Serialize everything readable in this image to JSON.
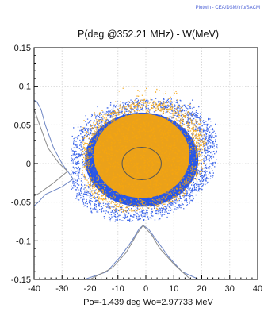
{
  "credit": "Plotwin - CEA/DSM/Irfu/SACM",
  "chart_data": {
    "type": "scatter",
    "title": "P(deg @352.21 MHz) - W(MeV)",
    "xlabel": "Po=-1.439 deg  Wo=2.97733 MeV",
    "ylabel": "",
    "xlim": [
      -40,
      40
    ],
    "ylim": [
      -0.15,
      0.15
    ],
    "x_ticks": [
      -40,
      -30,
      -20,
      -10,
      0,
      10,
      20,
      30,
      40
    ],
    "x_tick_labels": [
      "-40",
      "-30",
      "-20",
      "-10",
      "0",
      "10",
      "20",
      "30",
      "40"
    ],
    "y_ticks": [
      0.15,
      0.1,
      0.05,
      0,
      -0.05,
      -0.1,
      -0.15
    ],
    "y_tick_labels": [
      "0.15",
      "0.1",
      "0.05",
      "0",
      "-0.05",
      "-0.1",
      "-0.15"
    ],
    "grid": true,
    "series": [
      {
        "color": "#1f4fe6",
        "kind": "particles",
        "shape": "tilted ellipse with outer halo",
        "center": [
          -1.5,
          0.005
        ],
        "half_width_deg": 26,
        "half_height_MeV": 0.078,
        "tilt_slope": 0.0011,
        "x_range": [
          -27,
          33
        ],
        "y_range": [
          -0.075,
          0.085
        ]
      },
      {
        "color": "#f5a50e",
        "kind": "particles",
        "shape": "tilted ellipse with upper halo",
        "center": [
          -1.5,
          0.01
        ],
        "half_width_deg": 22,
        "half_height_MeV": 0.07,
        "tilt_slope": 0.001,
        "x_range": [
          -23,
          28
        ],
        "y_range": [
          -0.062,
          0.112
        ]
      },
      {
        "color": "#555555",
        "kind": "reference-ellipse",
        "center": [
          -1.5,
          0.0
        ],
        "rx_deg": 7,
        "ry_MeV": 0.021
      },
      {
        "color": "#6e86c4",
        "kind": "phase-profile",
        "anchor": "bottom",
        "points": [
          [
            -22,
            -0.15
          ],
          [
            -14,
            -0.14
          ],
          [
            -9,
            -0.12
          ],
          [
            -5,
            -0.1
          ],
          [
            -2.5,
            -0.085
          ],
          [
            -1,
            -0.08
          ],
          [
            1,
            -0.085
          ],
          [
            4,
            -0.1
          ],
          [
            8,
            -0.12
          ],
          [
            13,
            -0.14
          ],
          [
            19,
            -0.15
          ]
        ]
      },
      {
        "color": "#8a8a8a",
        "kind": "phase-profile",
        "anchor": "bottom",
        "points": [
          [
            -20,
            -0.15
          ],
          [
            -12,
            -0.135
          ],
          [
            -7,
            -0.115
          ],
          [
            -3,
            -0.09
          ],
          [
            -1,
            -0.08
          ],
          [
            2,
            -0.092
          ],
          [
            5,
            -0.11
          ],
          [
            10,
            -0.13
          ],
          [
            16,
            -0.15
          ]
        ]
      },
      {
        "color": "#6e86c4",
        "kind": "energy-profile",
        "anchor": "left",
        "points": [
          [
            -40,
            0.082
          ],
          [
            -39,
            0.08
          ],
          [
            -37.5,
            0.07
          ],
          [
            -36,
            0.05
          ],
          [
            -33,
            0.02
          ],
          [
            -30,
            0.0
          ],
          [
            -26,
            -0.02
          ],
          [
            -30,
            -0.03
          ],
          [
            -36,
            -0.04
          ],
          [
            -38.5,
            -0.05
          ],
          [
            -40,
            -0.055
          ]
        ]
      },
      {
        "color": "#8a8a8a",
        "kind": "energy-profile",
        "anchor": "left",
        "points": [
          [
            -40,
            0.07
          ],
          [
            -38,
            0.05
          ],
          [
            -35,
            0.02
          ],
          [
            -31,
            0.0
          ],
          [
            -28,
            -0.01
          ],
          [
            -33,
            -0.025
          ],
          [
            -38,
            -0.038
          ],
          [
            -40,
            -0.042
          ]
        ]
      }
    ]
  }
}
